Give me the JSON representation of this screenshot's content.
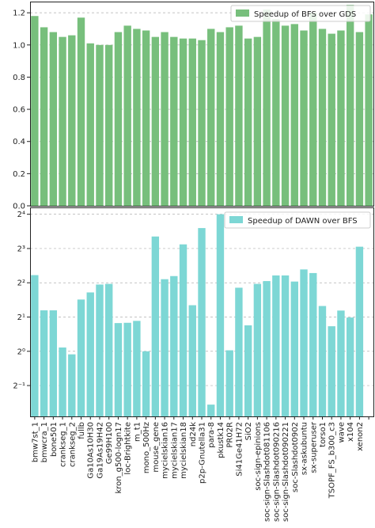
{
  "chart_data": [
    {
      "type": "bar",
      "title": "",
      "xlabel": "",
      "ylabel": "",
      "ylim": [
        0,
        1.25
      ],
      "yticks": [
        "0.0",
        "0.2",
        "0.4",
        "0.6",
        "0.8",
        "1.0",
        "1.2"
      ],
      "grid": "horizontal dashed",
      "legend_position": "top-right",
      "color": "#77bf7c",
      "series": [
        {
          "name": "Speedup of BFS over GDS",
          "values": [
            1.18,
            1.11,
            1.08,
            1.05,
            1.06,
            1.17,
            1.01,
            1.0,
            1.0,
            1.08,
            1.12,
            1.1,
            1.09,
            1.05,
            1.08,
            1.05,
            1.04,
            1.04,
            1.03,
            1.1,
            1.08,
            1.11,
            1.12,
            1.04,
            1.05,
            1.22,
            1.16,
            1.12,
            1.13,
            1.09,
            1.2,
            1.1,
            1.07,
            1.09,
            1.25,
            1.08,
            1.19
          ]
        }
      ]
    },
    {
      "type": "bar",
      "title": "",
      "xlabel": "",
      "ylabel": "",
      "scale": "log2",
      "ylim_log2": [
        -1.9,
        4.2
      ],
      "yticks": [
        "2⁻¹",
        "2⁰",
        "2¹",
        "2²",
        "2³",
        "2⁴"
      ],
      "grid": "horizontal dashed",
      "legend_position": "top-right",
      "color": "#7dd7d5",
      "categories": [
        "bmw7st_1",
        "bmwcra_1",
        "bone501",
        "crankseg_1",
        "crankseg_2",
        "fullb",
        "Ga10As10H30",
        "Ga19As19H42",
        "Ge99H100",
        "kron_g500-logn17",
        "loc-Brightkite",
        "m_t1",
        "mono_500Hz",
        "mouse_gene",
        "mycielskian16",
        "mycielskian17",
        "mycielskian18",
        "nd24k",
        "p2p-Gnutella31",
        "para-8",
        "pkustk14",
        "PR02R",
        "Si41Ge41H72",
        "SiO2",
        "soc-sign-epinions",
        "soc-sign-Slashdot081106",
        "soc-sign-Slashdot090216",
        "soc-sign-Slashdot090221",
        "soc-Slashdot0902",
        "sx-askubuntu",
        "sx-superuser",
        "torso1",
        "TSOPF_FS_b300_c3",
        "wave",
        "x104",
        "xenon2",
        ""
      ],
      "series": [
        {
          "name": "Speedup of DAWN over BFS",
          "values": [
            4.67,
            2.29,
            2.29,
            1.08,
            0.94,
            2.85,
            3.29,
            3.86,
            3.91,
            1.77,
            1.78,
            1.85,
            1.0,
            10.2,
            4.3,
            4.58,
            8.7,
            2.54,
            12.1,
            0.34,
            16.0,
            1.02,
            3.62,
            1.69,
            3.91,
            4.14,
            4.64,
            4.64,
            4.1,
            5.24,
            4.87,
            2.5,
            1.66,
            2.28,
            1.98,
            8.3,
            0.0
          ]
        }
      ]
    }
  ]
}
